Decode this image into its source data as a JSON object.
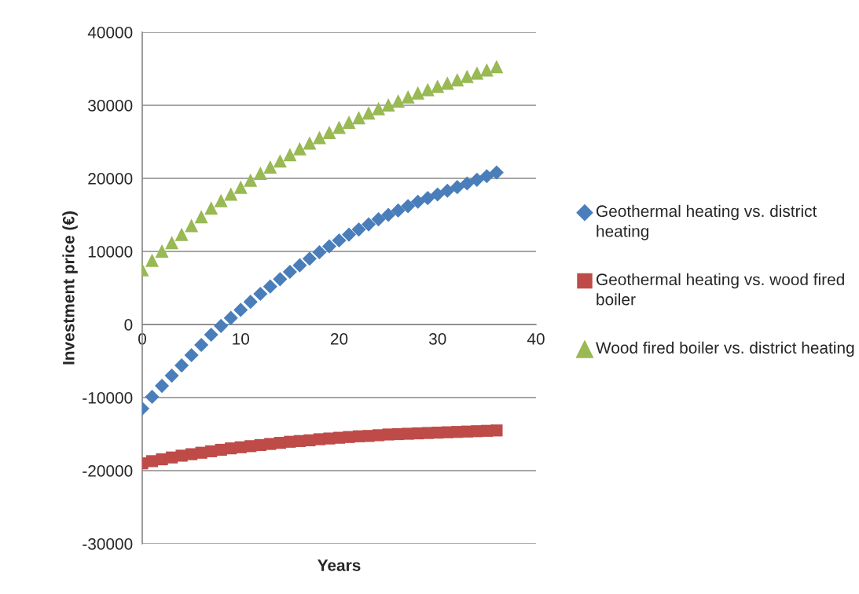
{
  "chart_data": {
    "type": "scatter",
    "xlabel": "Years",
    "ylabel": "Investment price (€)",
    "x": [
      0,
      1,
      2,
      3,
      4,
      5,
      6,
      7,
      8,
      9,
      10,
      11,
      12,
      13,
      14,
      15,
      16,
      17,
      18,
      19,
      20,
      21,
      22,
      23,
      24,
      25,
      26,
      27,
      28,
      29,
      30,
      31,
      32,
      33,
      34,
      35,
      36
    ],
    "series": [
      {
        "name": "Geothermal heating vs. district heating",
        "color": "#4a7ebb",
        "marker": "diamond",
        "values": [
          -11500,
          -9900,
          -8400,
          -7000,
          -5600,
          -4200,
          -2800,
          -1400,
          -200,
          900,
          2000,
          3100,
          4200,
          5200,
          6200,
          7200,
          8100,
          9000,
          9900,
          10700,
          11500,
          12300,
          13000,
          13700,
          14400,
          15000,
          15600,
          16200,
          16800,
          17300,
          17800,
          18300,
          18800,
          19300,
          19800,
          20300,
          20800
        ]
      },
      {
        "name": "Geothermal heating vs. wood fired boiler",
        "color": "#be4b48",
        "marker": "square",
        "values": [
          -19000,
          -18700,
          -18450,
          -18200,
          -17950,
          -17750,
          -17550,
          -17350,
          -17150,
          -16950,
          -16800,
          -16650,
          -16500,
          -16350,
          -16200,
          -16050,
          -15950,
          -15850,
          -15700,
          -15600,
          -15500,
          -15400,
          -15300,
          -15250,
          -15150,
          -15050,
          -15000,
          -14950,
          -14900,
          -14850,
          -14800,
          -14750,
          -14700,
          -14650,
          -14600,
          -14550,
          -14500
        ]
      },
      {
        "name": "Wood fired boiler vs. district heating",
        "color": "#98b954",
        "marker": "triangle",
        "values": [
          7500,
          8800,
          10050,
          11200,
          12350,
          13550,
          14750,
          15950,
          16950,
          17850,
          18800,
          19750,
          20700,
          21550,
          22400,
          23250,
          24050,
          24850,
          25600,
          26300,
          27000,
          27700,
          28300,
          28950,
          29550,
          30050,
          30600,
          31150,
          31700,
          32150,
          32600,
          33050,
          33500,
          33950,
          34400,
          34850,
          35300
        ]
      }
    ],
    "xlim": [
      0,
      40
    ],
    "xticks": [
      0,
      10,
      20,
      30,
      40
    ],
    "ylim": [
      -30000,
      40000
    ],
    "yticks": [
      -30000,
      -20000,
      -10000,
      0,
      10000,
      20000,
      30000,
      40000
    ],
    "grid": "y",
    "legend": "right"
  }
}
